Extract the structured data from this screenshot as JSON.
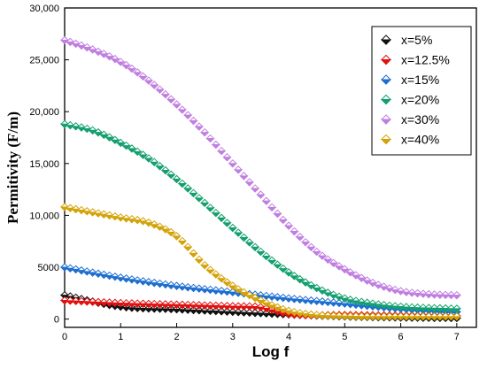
{
  "chart_data": {
    "type": "scatter",
    "title": "",
    "xlabel": "Log f",
    "ylabel": "Permitivity (F/m)",
    "xlim": [
      0,
      7.35
    ],
    "ylim": [
      -800,
      30000
    ],
    "xticks": [
      0,
      1,
      2,
      3,
      4,
      5,
      6,
      7
    ],
    "yticks": [
      0,
      5000,
      10000,
      15000,
      20000,
      25000,
      30000
    ],
    "xtick_labels": [
      "0",
      "1",
      "2",
      "3",
      "4",
      "5",
      "6",
      "7"
    ],
    "ytick_labels": [
      "0",
      "5000",
      "10,000",
      "15,000",
      "20,000",
      "25,000",
      "30,000"
    ],
    "marker": "diamond",
    "legend_position": "top-right",
    "grid": false,
    "series": [
      {
        "name": "x=5%",
        "color": "#111111",
        "x": [
          0,
          1,
          2,
          3,
          4,
          5,
          6,
          7
        ],
        "y": [
          2300,
          1200,
          950,
          700,
          450,
          250,
          150,
          100
        ]
      },
      {
        "name": "x=12.5%",
        "color": "#e01010",
        "x": [
          0,
          1,
          2,
          3,
          3.5,
          4,
          5,
          6,
          7
        ],
        "y": [
          1800,
          1550,
          1400,
          1250,
          1150,
          500,
          400,
          350,
          300
        ]
      },
      {
        "name": "x=15%",
        "color": "#1e6fd0",
        "x": [
          0,
          1,
          2,
          3,
          4,
          5,
          6,
          7
        ],
        "y": [
          5000,
          4000,
          3200,
          2600,
          2000,
          1500,
          1000,
          700
        ]
      },
      {
        "name": "x=20%",
        "color": "#14a06e",
        "x": [
          0,
          0.5,
          1,
          1.5,
          2,
          2.5,
          3,
          3.5,
          4,
          4.5,
          5,
          5.5,
          6,
          7
        ],
        "y": [
          18800,
          18200,
          17000,
          15500,
          13500,
          11200,
          8800,
          6500,
          4500,
          3000,
          2000,
          1500,
          1200,
          1000
        ]
      },
      {
        "name": "x=30%",
        "color": "#c07fe0",
        "x": [
          0,
          0.5,
          1,
          1.5,
          2,
          2.5,
          3,
          3.5,
          4,
          4.5,
          5,
          5.5,
          6,
          6.5,
          7
        ],
        "y": [
          26900,
          26000,
          24800,
          23000,
          20700,
          18000,
          15000,
          12000,
          9000,
          6500,
          4800,
          3500,
          2700,
          2400,
          2300
        ]
      },
      {
        "name": "x=40%",
        "color": "#d4a30a",
        "x": [
          0,
          0.5,
          1,
          1.5,
          2,
          2.5,
          3,
          3.5,
          4,
          4.5,
          5,
          5.5,
          6,
          7
        ],
        "y": [
          10800,
          10300,
          9800,
          9300,
          8000,
          5200,
          3200,
          1800,
          800,
          400,
          300,
          250,
          250,
          250
        ]
      }
    ]
  }
}
